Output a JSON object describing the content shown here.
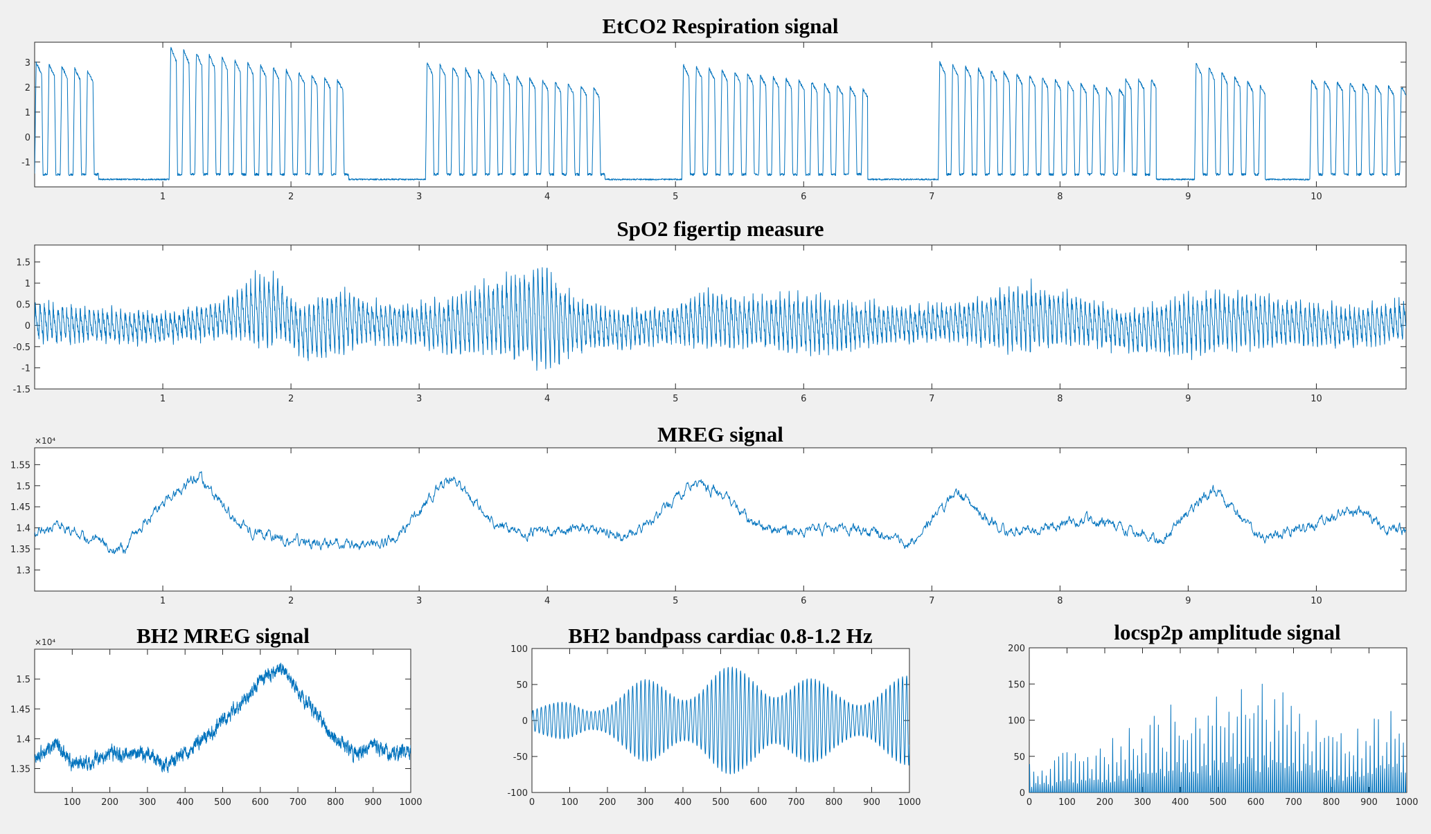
{
  "figure": {
    "background": "#f0f0f0",
    "line_color": "#0072bd"
  },
  "chart_data": [
    {
      "id": "etco2",
      "type": "line",
      "title": "EtCO2 Respiration signal",
      "xlim": [
        0,
        10.7
      ],
      "ylim": [
        -2,
        3.8
      ],
      "xticks": [
        1,
        2,
        3,
        4,
        5,
        6,
        7,
        8,
        9,
        10
      ],
      "xtick_labels": [
        "1",
        "2",
        "3",
        "4",
        "5",
        "6",
        "7",
        "8",
        "9",
        "10"
      ],
      "yticks": [
        -1,
        0,
        1,
        2,
        3
      ],
      "ytick_labels": [
        "-1",
        "0",
        "1",
        "2",
        "3"
      ],
      "y_exponent": "",
      "grid": false,
      "series": [
        {
          "color": "#0072bd",
          "shape": "respiration",
          "baseline": -1.7,
          "cycle_period": 0.1,
          "noise": 0.05,
          "active_segments": [
            {
              "start": 0.0,
              "end": 0.5,
              "peak_start": 3.0,
              "peak_end": 2.6
            },
            {
              "start": 1.05,
              "end": 2.45,
              "peak_start": 3.6,
              "peak_end": 2.2
            },
            {
              "start": 3.05,
              "end": 4.45,
              "peak_start": 3.0,
              "peak_end": 1.9
            },
            {
              "start": 5.05,
              "end": 6.5,
              "peak_start": 2.9,
              "peak_end": 1.9
            },
            {
              "start": 7.05,
              "end": 8.5,
              "peak_start": 3.0,
              "peak_end": 1.9
            },
            {
              "start": 8.5,
              "end": 8.75,
              "peak_start": 2.3,
              "peak_end": 2.3
            },
            {
              "start": 9.05,
              "end": 9.6,
              "peak_start": 3.0,
              "peak_end": 2.0
            },
            {
              "start": 9.95,
              "end": 10.7,
              "peak_start": 2.3,
              "peak_end": 2.0
            }
          ]
        }
      ]
    },
    {
      "id": "spo2",
      "type": "line",
      "title": "SpO2 figertip measure",
      "xlim": [
        0,
        10.7
      ],
      "ylim": [
        -1.5,
        1.9
      ],
      "xticks": [
        1,
        2,
        3,
        4,
        5,
        6,
        7,
        8,
        9,
        10
      ],
      "xtick_labels": [
        "1",
        "2",
        "3",
        "4",
        "5",
        "6",
        "7",
        "8",
        "9",
        "10"
      ],
      "yticks": [
        -1.5,
        -1,
        -0.5,
        0,
        0.5,
        1,
        1.5
      ],
      "ytick_labels": [
        "-1.5",
        "-1",
        "-0.5",
        "0",
        "0.5",
        "1",
        "1.5"
      ],
      "y_exponent": "",
      "grid": false,
      "series": [
        {
          "color": "#0072bd",
          "shape": "pulse",
          "pulse_period": 0.035,
          "envelope_x": [
            0,
            0.5,
            1.0,
            1.5,
            1.8,
            2.0,
            2.2,
            2.4,
            2.6,
            3.0,
            3.4,
            3.6,
            3.8,
            4.0,
            4.2,
            4.5,
            5.0,
            5.2,
            5.6,
            6.0,
            6.4,
            6.8,
            7.2,
            7.6,
            7.8,
            8.2,
            8.6,
            9.0,
            9.4,
            9.8,
            10.2,
            10.7
          ],
          "envelope_amp": [
            0.5,
            0.4,
            0.35,
            0.5,
            0.95,
            0.6,
            0.8,
            0.9,
            0.5,
            0.5,
            0.8,
            0.9,
            1.1,
            1.3,
            0.7,
            0.45,
            0.45,
            0.7,
            0.6,
            0.75,
            0.55,
            0.4,
            0.45,
            0.75,
            0.8,
            0.55,
            0.5,
            0.75,
            0.7,
            0.55,
            0.45,
            0.5
          ],
          "offset_x": [
            0,
            1.0,
            1.9,
            2.1,
            2.5,
            3.2,
            3.6,
            4.6,
            5.2,
            6.2,
            7.0,
            8.0,
            8.6,
            9.4,
            10.2,
            10.7
          ],
          "offset_y": [
            0.0,
            -0.1,
            0.3,
            -0.25,
            0.05,
            -0.1,
            0.1,
            -0.15,
            0.05,
            -0.1,
            0.0,
            0.1,
            -0.2,
            0.05,
            -0.1,
            0.05
          ]
        }
      ]
    },
    {
      "id": "mreg",
      "type": "line",
      "title": "MREG signal",
      "xlim": [
        0,
        10.7
      ],
      "ylim": [
        12.5,
        15.9
      ],
      "xticks": [
        1,
        2,
        3,
        4,
        5,
        6,
        7,
        8,
        9,
        10
      ],
      "xtick_labels": [
        "1",
        "2",
        "3",
        "4",
        "5",
        "6",
        "7",
        "8",
        "9",
        "10"
      ],
      "yticks": [
        13,
        13.5,
        14,
        14.5,
        15,
        15.5
      ],
      "ytick_labels": [
        "1.3",
        "1.35",
        "1.4",
        "1.45",
        "1.5",
        "1.55"
      ],
      "y_exponent": "×10⁴",
      "grid": false,
      "series": [
        {
          "color": "#0072bd",
          "shape": "trend",
          "noise": 0.08,
          "x": [
            0,
            0.2,
            0.4,
            0.6,
            0.7,
            0.8,
            1.0,
            1.2,
            1.3,
            1.5,
            1.7,
            2.0,
            2.3,
            2.5,
            2.7,
            2.9,
            3.1,
            3.25,
            3.4,
            3.6,
            3.8,
            4.0,
            4.3,
            4.6,
            4.8,
            5.0,
            5.15,
            5.4,
            5.6,
            5.9,
            6.2,
            6.5,
            6.8,
            7.0,
            7.2,
            7.4,
            7.6,
            7.9,
            8.2,
            8.5,
            8.8,
            9.0,
            9.2,
            9.4,
            9.6,
            9.8,
            10.0,
            10.2,
            10.4,
            10.55,
            10.62,
            10.7
          ],
          "y": [
            13.9,
            14.1,
            13.8,
            13.5,
            13.5,
            13.9,
            14.6,
            15.1,
            15.2,
            14.4,
            13.9,
            13.7,
            13.6,
            13.6,
            13.6,
            14.0,
            14.8,
            15.2,
            14.7,
            14.1,
            13.9,
            13.9,
            14.0,
            13.8,
            14.1,
            14.7,
            15.1,
            14.7,
            14.1,
            13.9,
            14.0,
            13.9,
            13.6,
            14.2,
            14.9,
            14.3,
            13.9,
            14.0,
            14.2,
            14.0,
            13.7,
            14.4,
            14.9,
            14.3,
            13.8,
            13.9,
            14.1,
            14.4,
            14.3,
            14.0,
            14.0,
            13.9
          ]
        }
      ]
    },
    {
      "id": "bh2_mreg",
      "type": "line",
      "title": "BH2 MREG signal",
      "xlim": [
        0,
        1000
      ],
      "ylim": [
        13.1,
        15.5
      ],
      "xticks": [
        100,
        200,
        300,
        400,
        500,
        600,
        700,
        800,
        900,
        1000
      ],
      "xtick_labels": [
        "100",
        "200",
        "300",
        "400",
        "500",
        "600",
        "700",
        "800",
        "900",
        "1000"
      ],
      "yticks": [
        13.5,
        14,
        14.5,
        15
      ],
      "ytick_labels": [
        "1.35",
        "1.4",
        "1.45",
        "1.5"
      ],
      "y_exponent": "×10⁴",
      "grid": false,
      "series": [
        {
          "color": "#0072bd",
          "shape": "trend",
          "noise": 0.07,
          "x": [
            0,
            60,
            100,
            150,
            200,
            250,
            300,
            350,
            400,
            450,
            500,
            550,
            600,
            630,
            660,
            700,
            750,
            800,
            850,
            900,
            950,
            1000
          ],
          "y": [
            13.7,
            13.9,
            13.6,
            13.6,
            13.75,
            13.7,
            13.75,
            13.55,
            13.75,
            14.0,
            14.3,
            14.6,
            15.0,
            15.1,
            15.15,
            14.8,
            14.4,
            14.0,
            13.75,
            13.9,
            13.75,
            13.8
          ]
        }
      ]
    },
    {
      "id": "bh2_cardiac",
      "type": "line",
      "title": "BH2 bandpass cardiac 0.8-1.2 Hz",
      "xlim": [
        0,
        1000
      ],
      "ylim": [
        -100,
        100
      ],
      "xticks": [
        0,
        100,
        200,
        300,
        400,
        500,
        600,
        700,
        800,
        900,
        1000
      ],
      "xtick_labels": [
        "0",
        "100",
        "200",
        "300",
        "400",
        "500",
        "600",
        "700",
        "800",
        "900",
        "1000"
      ],
      "yticks": [
        -100,
        -50,
        0,
        50,
        100
      ],
      "ytick_labels": [
        "-100",
        "-50",
        "0",
        "50",
        "100"
      ],
      "y_exponent": "",
      "grid": false,
      "series": [
        {
          "color": "#0072bd",
          "shape": "oscillation",
          "period": 11,
          "env_x": [
            0,
            50,
            100,
            150,
            200,
            250,
            300,
            350,
            400,
            450,
            500,
            550,
            600,
            650,
            700,
            750,
            800,
            850,
            900,
            950,
            1000
          ],
          "env_amp": [
            18,
            22,
            28,
            25,
            35,
            45,
            55,
            60,
            62,
            65,
            70,
            72,
            78,
            70,
            65,
            55,
            45,
            45,
            50,
            55,
            60
          ]
        }
      ]
    },
    {
      "id": "locsp2p",
      "type": "bar",
      "title": "locsp2p amplitude signal",
      "xlim": [
        0,
        1000
      ],
      "ylim": [
        0,
        200
      ],
      "xticks": [
        0,
        100,
        200,
        300,
        400,
        500,
        600,
        700,
        800,
        900,
        1000
      ],
      "xtick_labels": [
        "0",
        "100",
        "200",
        "300",
        "400",
        "500",
        "600",
        "700",
        "800",
        "900",
        "1000"
      ],
      "yticks": [
        0,
        50,
        100,
        150,
        200
      ],
      "ytick_labels": [
        "0",
        "50",
        "100",
        "150",
        "200"
      ],
      "y_exponent": "",
      "grid": false,
      "series": [
        {
          "color": "#0072bd",
          "shape": "spikes",
          "spike_period": 11,
          "env_x": [
            0,
            50,
            100,
            150,
            200,
            250,
            300,
            350,
            400,
            450,
            500,
            550,
            600,
            650,
            700,
            750,
            800,
            850,
            900,
            950,
            1000
          ],
          "env_amp": [
            40,
            45,
            60,
            55,
            70,
            90,
            110,
            120,
            130,
            125,
            140,
            150,
            160,
            145,
            130,
            110,
            90,
            85,
            100,
            115,
            130
          ]
        }
      ]
    }
  ]
}
